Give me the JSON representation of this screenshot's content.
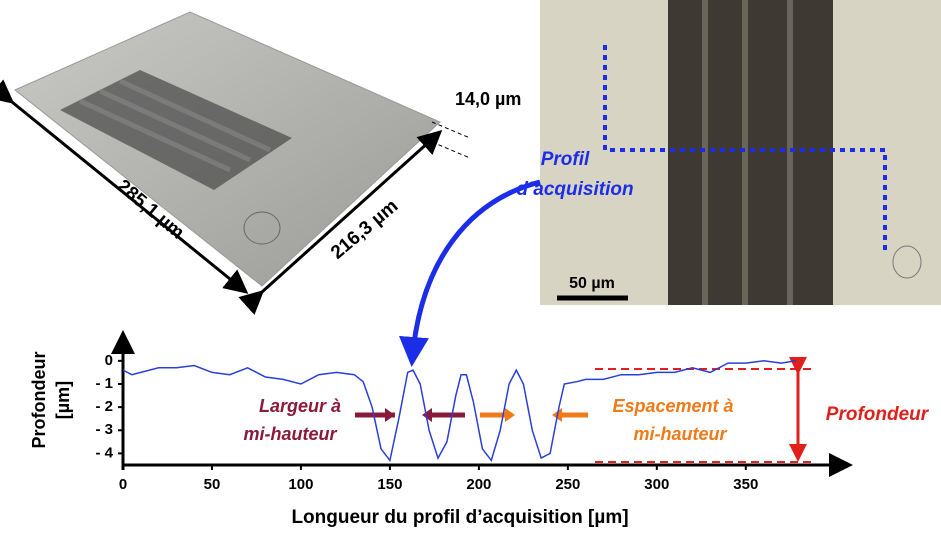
{
  "figure": {
    "length_label": "285,1 µm",
    "width_label": "216,3 µm",
    "height_label": "14,0 µm",
    "scale_label": "50 µm",
    "profile_label": [
      "Profil",
      "d’acquisition"
    ]
  },
  "chart_data": {
    "type": "line",
    "color": "#2a3fd6",
    "y_label": [
      "Profondeur",
      "[µm]"
    ],
    "x_label": "Longueur du profil d’acquisition [µm]",
    "annotations": {
      "fwhm": [
        "Largeur à",
        "mi-hauteur"
      ],
      "spacing": [
        "Espacement à",
        "mi-hauteur"
      ],
      "depth": "Profondeur"
    },
    "x": [
      0,
      5,
      10,
      20,
      30,
      40,
      50,
      60,
      70,
      80,
      90,
      100,
      110,
      120,
      130,
      135,
      140,
      145,
      150,
      155,
      160,
      163,
      167,
      172,
      177,
      182,
      187,
      190,
      193,
      197,
      202,
      207,
      212,
      217,
      221,
      225,
      230,
      235,
      240,
      245,
      248,
      255,
      260,
      270,
      280,
      290,
      300,
      310,
      320,
      330,
      340,
      350,
      360,
      370,
      378
    ],
    "values": [
      -0.4,
      -0.6,
      -0.5,
      -0.3,
      -0.3,
      -0.2,
      -0.5,
      -0.6,
      -0.3,
      -0.7,
      -0.8,
      -1.0,
      -0.6,
      -0.5,
      -0.6,
      -0.9,
      -2.0,
      -3.8,
      -4.3,
      -2.5,
      -0.5,
      -0.4,
      -1.0,
      -3.0,
      -4.2,
      -3.5,
      -1.5,
      -0.6,
      -0.6,
      -1.8,
      -3.8,
      -4.3,
      -3.0,
      -1.0,
      -0.4,
      -1.0,
      -3.0,
      -4.2,
      -4.0,
      -2.0,
      -1.0,
      -0.9,
      -0.8,
      -0.8,
      -0.6,
      -0.6,
      -0.5,
      -0.5,
      -0.3,
      -0.5,
      -0.1,
      -0.1,
      0.0,
      -0.1,
      0.0
    ],
    "xlim": [
      0,
      408
    ],
    "ylim": [
      -4.5,
      0.9
    ],
    "xticks": [
      0,
      50,
      100,
      150,
      200,
      250,
      300,
      350
    ],
    "yticks": [
      0,
      {
        "value": -1,
        "label": "- 1"
      },
      {
        "value": -2,
        "label": "- 2"
      },
      {
        "value": -3,
        "label": "- 3"
      },
      {
        "value": -4,
        "label": "- 4"
      }
    ]
  }
}
